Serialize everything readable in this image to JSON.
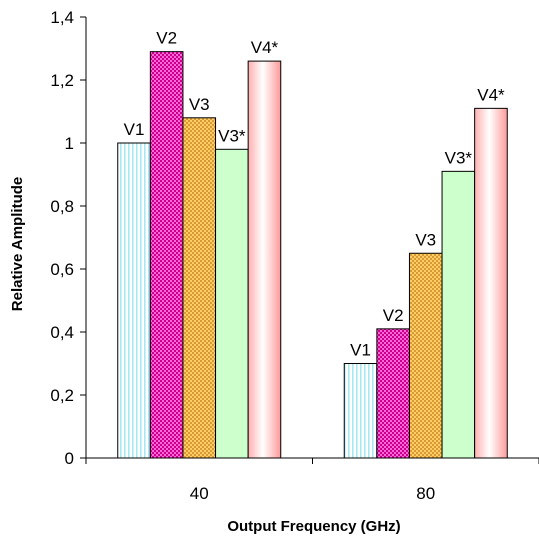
{
  "chart_data": {
    "type": "bar",
    "xlabel": "Output Frequency (GHz)",
    "ylabel": "Relative Amplitude",
    "categories": [
      "40",
      "80"
    ],
    "ylim": [
      0,
      1.4
    ],
    "yticks": [
      0,
      0.2,
      0.4,
      0.6,
      0.8,
      1.0,
      1.2,
      1.4
    ],
    "ytick_labels": [
      "0",
      "0,2",
      "0,4",
      "0,6",
      "0,8",
      "1",
      "1,2",
      "1,4"
    ],
    "grid": false,
    "legend": "none",
    "series": [
      {
        "key": "v1",
        "name": "V1",
        "values": [
          1.0,
          0.3
        ],
        "fill": "#ffffff",
        "pattern": "vertical-lines",
        "pattern_color": "#a8e8f0"
      },
      {
        "key": "v2",
        "name": "V2",
        "values": [
          1.29,
          0.41
        ],
        "fill": "#ff66dd",
        "pattern": "checker",
        "pattern_color": "#cc0088"
      },
      {
        "key": "v3",
        "name": "V3",
        "values": [
          1.08,
          0.65
        ],
        "fill": "#ffcc66",
        "pattern": "checker",
        "pattern_color": "#d99a33"
      },
      {
        "key": "v3s",
        "name": "V3*",
        "values": [
          0.98,
          0.91
        ],
        "fill": "#ccffcc",
        "pattern": "none",
        "pattern_color": ""
      },
      {
        "key": "v4s",
        "name": "V4*",
        "values": [
          1.26,
          1.11
        ],
        "fill": "#ffcccc",
        "pattern": "gradient",
        "pattern_color": "#ffffff"
      }
    ]
  }
}
